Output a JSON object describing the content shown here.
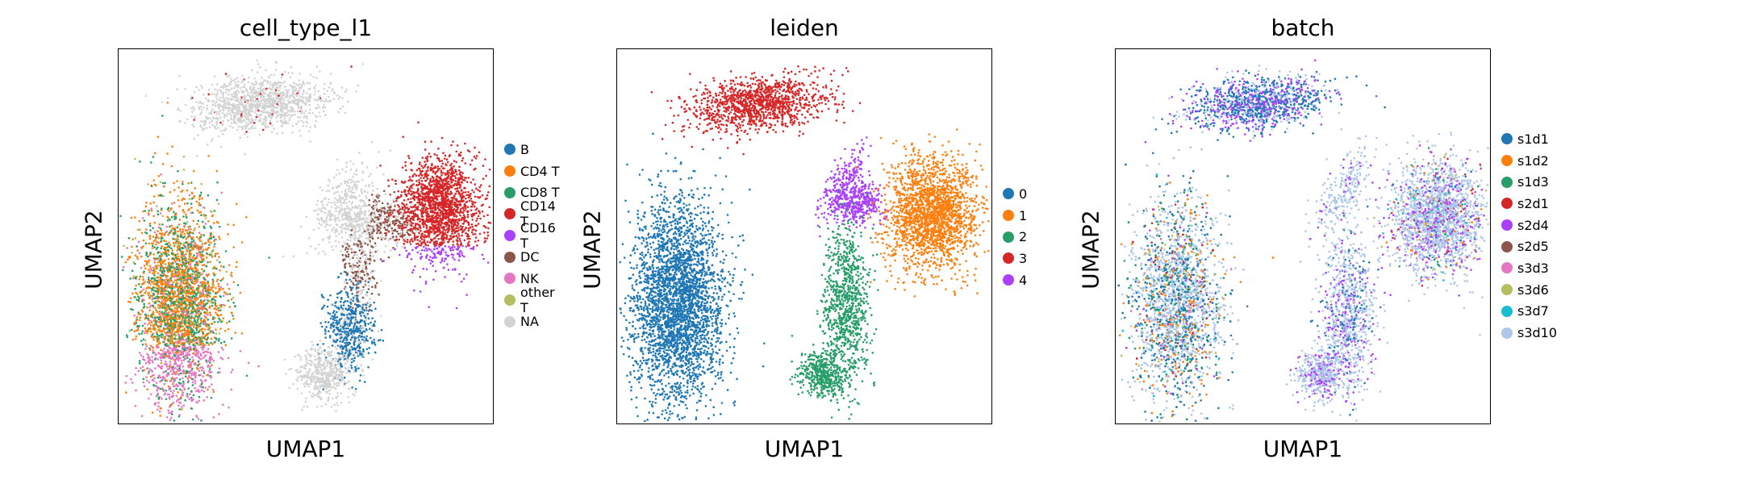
{
  "chart_data": [
    {
      "type": "scatter",
      "title": "cell_type_l1",
      "xlabel": "UMAP1",
      "ylabel": "UMAP2",
      "grid": false,
      "legend_position": "right",
      "legend": [
        {
          "label": "B",
          "color": "#1f77b4"
        },
        {
          "label": "CD4 T",
          "color": "#ff7f0e"
        },
        {
          "label": "CD8 T",
          "color": "#279e68"
        },
        {
          "label": "CD14 T",
          "color": "#d62728"
        },
        {
          "label": "CD16 T",
          "color": "#aa40fc"
        },
        {
          "label": "DC",
          "color": "#8c564b"
        },
        {
          "label": "NK",
          "color": "#e377c2"
        },
        {
          "label": "other T",
          "color": "#b5bd61"
        },
        {
          "label": "NA",
          "color": "#d3d3d3"
        }
      ]
    },
    {
      "type": "scatter",
      "title": "leiden",
      "xlabel": "UMAP1",
      "ylabel": "UMAP2",
      "grid": false,
      "legend_position": "right",
      "legend": [
        {
          "label": "0",
          "color": "#1f77b4"
        },
        {
          "label": "1",
          "color": "#ff7f0e"
        },
        {
          "label": "2",
          "color": "#279e68"
        },
        {
          "label": "3",
          "color": "#d62728"
        },
        {
          "label": "4",
          "color": "#aa40fc"
        }
      ]
    },
    {
      "type": "scatter",
      "title": "batch",
      "xlabel": "UMAP1",
      "ylabel": "UMAP2",
      "grid": false,
      "legend_position": "right",
      "legend": [
        {
          "label": "s1d1",
          "color": "#1f77b4"
        },
        {
          "label": "s1d2",
          "color": "#ff7f0e"
        },
        {
          "label": "s1d3",
          "color": "#279e68"
        },
        {
          "label": "s2d1",
          "color": "#d62728"
        },
        {
          "label": "s2d4",
          "color": "#aa40fc"
        },
        {
          "label": "s2d5",
          "color": "#8c564b"
        },
        {
          "label": "s3d3",
          "color": "#e377c2"
        },
        {
          "label": "s3d6",
          "color": "#b5bd61"
        },
        {
          "label": "s3d7",
          "color": "#17becf"
        },
        {
          "label": "s3d10",
          "color": "#aec7e8"
        }
      ]
    }
  ]
}
